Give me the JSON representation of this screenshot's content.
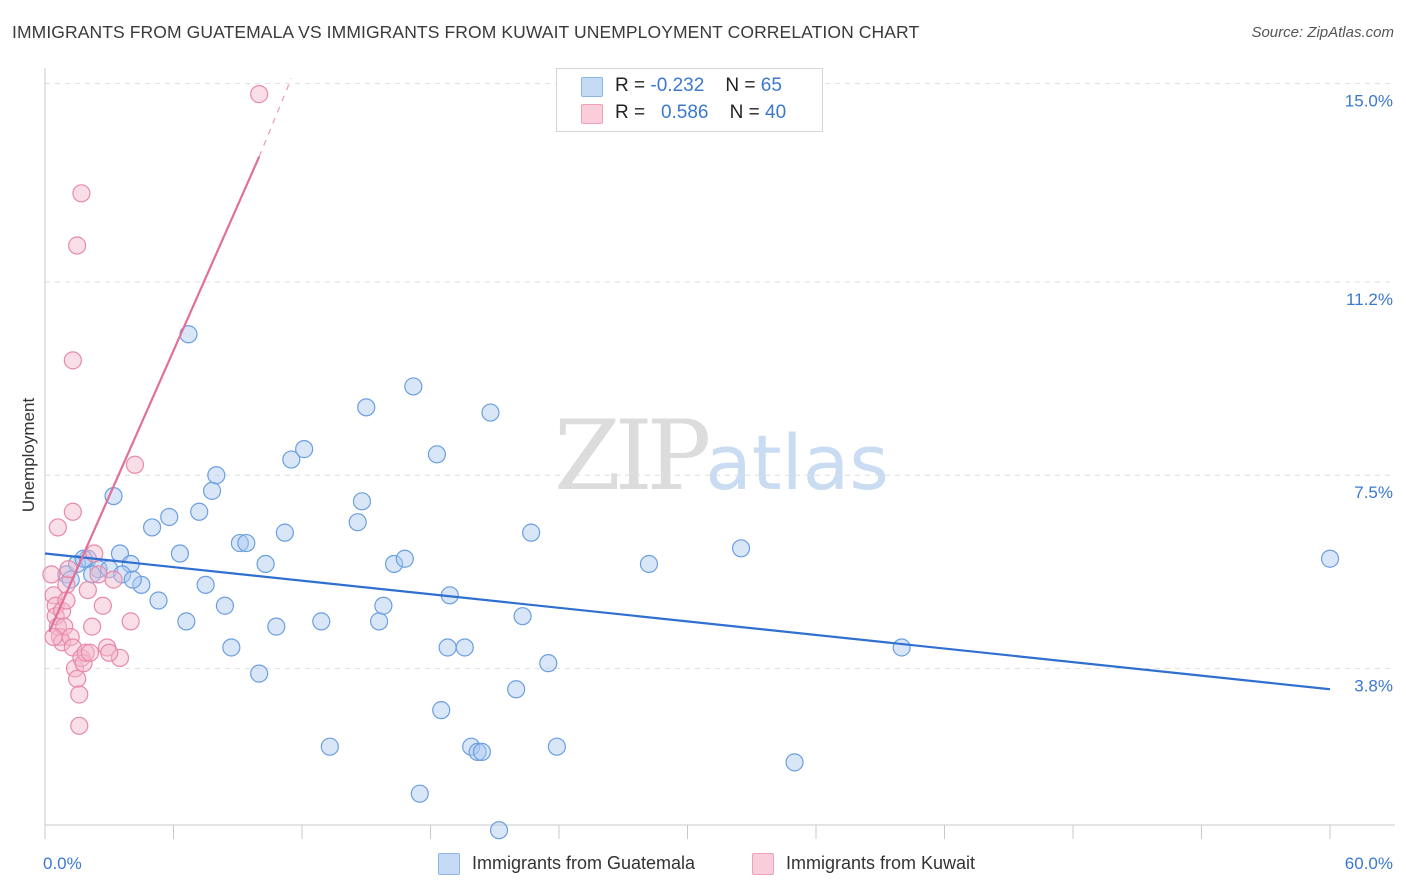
{
  "header": {
    "title": "IMMIGRANTS FROM GUATEMALA VS IMMIGRANTS FROM KUWAIT UNEMPLOYMENT CORRELATION CHART",
    "source": "Source: ZipAtlas.com"
  },
  "legend": {
    "rows": [
      {
        "r_label": "R =",
        "r_value": "-0.232",
        "n_label": "N =",
        "n_value": "65",
        "color": "#a9c8f0"
      },
      {
        "r_label": "R =",
        "r_value": "0.586",
        "n_label": "N =",
        "n_value": "40",
        "color": "#f5b6ca"
      }
    ]
  },
  "watermark": {
    "zip": "ZIP",
    "atlas": "atlas"
  },
  "chart_data": {
    "type": "scatter",
    "ylabel": "Unemployment",
    "xlim": [
      0,
      60
    ],
    "ylim": [
      0.8,
      15.3
    ],
    "x_tick_labels": [
      "0.0%",
      "60.0%"
    ],
    "y_ticks": [
      3.8,
      7.5,
      11.2,
      15.0
    ],
    "y_tick_labels": [
      "3.8%",
      "7.5%",
      "11.2%",
      "15.0%"
    ],
    "grid": true,
    "legend_position": "top-center",
    "series": [
      {
        "name": "Immigrants from Guatemala",
        "color": "#a9c8f0",
        "stroke": "#6b9fe0",
        "trend": {
          "x": [
            0,
            60
          ],
          "y": [
            6.0,
            3.4
          ],
          "color": "#2f6fd0"
        },
        "points": [
          [
            1.0,
            5.6
          ],
          [
            1.2,
            5.5
          ],
          [
            1.5,
            5.8
          ],
          [
            2.0,
            5.9
          ],
          [
            2.5,
            5.7
          ],
          [
            3.0,
            5.7
          ],
          [
            3.5,
            6.0
          ],
          [
            4.0,
            5.8
          ],
          [
            3.2,
            7.1
          ],
          [
            3.6,
            5.6
          ],
          [
            4.5,
            5.4
          ],
          [
            4.1,
            5.5
          ],
          [
            5.0,
            6.5
          ],
          [
            5.3,
            5.1
          ],
          [
            5.8,
            6.7
          ],
          [
            6.3,
            6.0
          ],
          [
            6.6,
            4.7
          ],
          [
            7.2,
            6.8
          ],
          [
            7.5,
            5.4
          ],
          [
            7.8,
            7.2
          ],
          [
            8.0,
            7.5
          ],
          [
            8.4,
            5.0
          ],
          [
            8.7,
            4.2
          ],
          [
            9.1,
            6.2
          ],
          [
            9.4,
            6.2
          ],
          [
            10.0,
            3.7
          ],
          [
            10.3,
            5.8
          ],
          [
            10.8,
            4.6
          ],
          [
            11.2,
            6.4
          ],
          [
            11.5,
            7.8
          ],
          [
            12.1,
            8.0
          ],
          [
            12.9,
            4.7
          ],
          [
            13.3,
            2.3
          ],
          [
            14.6,
            6.6
          ],
          [
            14.8,
            7.0
          ],
          [
            15.0,
            8.8
          ],
          [
            15.6,
            4.7
          ],
          [
            15.8,
            5.0
          ],
          [
            16.3,
            5.8
          ],
          [
            16.8,
            5.9
          ],
          [
            17.5,
            1.4
          ],
          [
            17.2,
            9.2
          ],
          [
            18.3,
            7.9
          ],
          [
            18.5,
            3.0
          ],
          [
            18.8,
            4.2
          ],
          [
            18.9,
            5.2
          ],
          [
            19.6,
            4.2
          ],
          [
            19.9,
            2.3
          ],
          [
            20.2,
            2.2
          ],
          [
            20.4,
            2.2
          ],
          [
            20.8,
            8.7
          ],
          [
            21.2,
            0.7
          ],
          [
            22.0,
            3.4
          ],
          [
            22.3,
            4.8
          ],
          [
            22.7,
            6.4
          ],
          [
            23.5,
            3.9
          ],
          [
            23.9,
            2.3
          ],
          [
            28.2,
            5.8
          ],
          [
            32.5,
            6.1
          ],
          [
            35.0,
            2.0
          ],
          [
            40.0,
            4.2
          ],
          [
            60.0,
            5.9
          ],
          [
            6.7,
            10.2
          ],
          [
            2.2,
            5.6
          ],
          [
            1.8,
            5.9
          ]
        ]
      },
      {
        "name": "Immigrants from Kuwait",
        "color": "#f5b6ca",
        "stroke": "#e78aa8",
        "trend": {
          "x": [
            0.2,
            10.0
          ],
          "y": [
            4.5,
            13.6
          ],
          "dash_to": [
            11.5,
            15.1
          ],
          "color": "#e0709a"
        },
        "points": [
          [
            0.3,
            5.6
          ],
          [
            0.4,
            5.2
          ],
          [
            0.5,
            5.0
          ],
          [
            0.5,
            4.8
          ],
          [
            0.6,
            4.6
          ],
          [
            0.7,
            4.4
          ],
          [
            0.8,
            4.3
          ],
          [
            0.8,
            4.9
          ],
          [
            0.9,
            4.6
          ],
          [
            1.0,
            5.4
          ],
          [
            1.1,
            5.7
          ],
          [
            1.2,
            4.4
          ],
          [
            1.3,
            4.2
          ],
          [
            1.4,
            3.8
          ],
          [
            1.5,
            3.6
          ],
          [
            1.6,
            3.3
          ],
          [
            1.7,
            4.0
          ],
          [
            1.8,
            3.9
          ],
          [
            1.9,
            4.1
          ],
          [
            2.0,
            5.3
          ],
          [
            2.1,
            4.1
          ],
          [
            2.3,
            6.0
          ],
          [
            2.5,
            5.6
          ],
          [
            2.7,
            5.0
          ],
          [
            2.9,
            4.2
          ],
          [
            3.2,
            5.5
          ],
          [
            3.5,
            4.0
          ],
          [
            0.6,
            6.5
          ],
          [
            1.3,
            6.8
          ],
          [
            1.6,
            2.7
          ],
          [
            1.3,
            9.7
          ],
          [
            1.5,
            11.9
          ],
          [
            1.7,
            12.9
          ],
          [
            4.2,
            7.7
          ],
          [
            10.0,
            14.8
          ],
          [
            1.0,
            5.1
          ],
          [
            2.2,
            4.6
          ],
          [
            3.0,
            4.1
          ],
          [
            4.0,
            4.7
          ],
          [
            0.4,
            4.4
          ]
        ]
      }
    ]
  }
}
